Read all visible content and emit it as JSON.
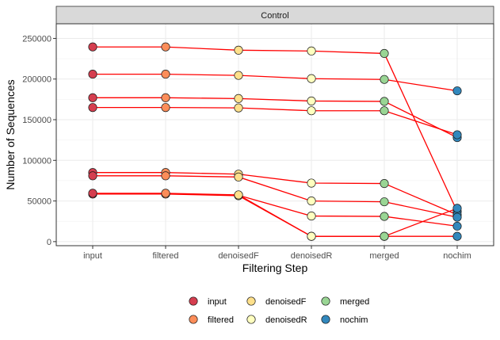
{
  "chart_data": {
    "type": "line",
    "facet_label": "Control",
    "xlabel": "Filtering Step",
    "ylabel": "Number of Sequences",
    "categories": [
      "input",
      "filtered",
      "denoisedF",
      "denoisedR",
      "merged",
      "nochim"
    ],
    "ylim": [
      -5000,
      268000
    ],
    "yticks": [
      0,
      50000,
      100000,
      150000,
      200000,
      250000
    ],
    "ytick_labels": [
      "0",
      "50000",
      "100000",
      "150000",
      "200000",
      "250000"
    ],
    "grid": true,
    "legend_position": "bottom",
    "line_color": "#ff0000",
    "step_colors": {
      "input": "#d53e4f",
      "filtered": "#fc8d59",
      "denoisedF": "#fee08b",
      "denoisedR": "#ffffbf",
      "merged": "#99d594",
      "nochim": "#3288bd"
    },
    "legend": [
      {
        "label": "input",
        "color": "#d53e4f"
      },
      {
        "label": "filtered",
        "color": "#fc8d59"
      },
      {
        "label": "denoisedF",
        "color": "#fee08b"
      },
      {
        "label": "denoisedR",
        "color": "#ffffbf"
      },
      {
        "label": "merged",
        "color": "#99d594"
      },
      {
        "label": "nochim",
        "color": "#3288bd"
      }
    ],
    "series": [
      {
        "values": [
          239500,
          239500,
          235500,
          234500,
          231500,
          37000
        ]
      },
      {
        "values": [
          206000,
          206000,
          204500,
          200500,
          199500,
          185500
        ]
      },
      {
        "values": [
          177000,
          177000,
          176000,
          173000,
          172500,
          128000
        ]
      },
      {
        "values": [
          165000,
          165000,
          164500,
          161000,
          161000,
          131500
        ]
      },
      {
        "values": [
          85000,
          85000,
          83000,
          72000,
          71500,
          33000
        ]
      },
      {
        "values": [
          81000,
          81000,
          79500,
          50000,
          49000,
          30000
        ]
      },
      {
        "values": [
          59000,
          59000,
          57000,
          31500,
          31000,
          19000
        ]
      },
      {
        "values": [
          58500,
          58500,
          56500,
          6500,
          6500,
          6500
        ]
      },
      {
        "values": [
          59500,
          59500,
          57500,
          6500,
          6500,
          41000
        ]
      }
    ]
  }
}
